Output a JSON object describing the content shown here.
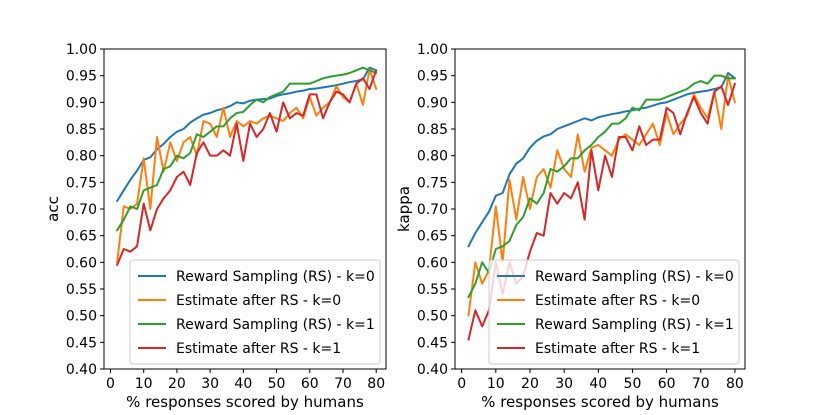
{
  "chart_data": [
    {
      "type": "line",
      "title": "",
      "xlabel": "% responses scored by humans",
      "ylabel": "acc",
      "xlim": [
        -1.95,
        82.95
      ],
      "ylim": [
        0.4,
        1.0
      ],
      "xticks": [
        "0",
        "10",
        "20",
        "30",
        "40",
        "50",
        "60",
        "70",
        "80"
      ],
      "xtick_values": [
        0,
        10,
        20,
        30,
        40,
        50,
        60,
        70,
        80
      ],
      "yticks": [
        "0.40",
        "0.45",
        "0.50",
        "0.55",
        "0.60",
        "0.65",
        "0.70",
        "0.75",
        "0.80",
        "0.85",
        "0.90",
        "0.95",
        "1.00"
      ],
      "ytick_values": [
        0.4,
        0.45,
        0.5,
        0.55,
        0.6,
        0.65,
        0.7,
        0.75,
        0.8,
        0.85,
        0.9,
        0.95,
        1.0
      ],
      "legend_position": "lower-right",
      "x": [
        2,
        4,
        6,
        8,
        10,
        12,
        14,
        16,
        18,
        20,
        22,
        24,
        26,
        28,
        30,
        32,
        34,
        36,
        38,
        40,
        42,
        44,
        46,
        48,
        50,
        52,
        54,
        56,
        58,
        60,
        62,
        64,
        66,
        68,
        70,
        72,
        74,
        76,
        78,
        80
      ],
      "series": [
        {
          "name": "Reward Sampling (RS) - k=0",
          "color": "#1f77b4",
          "values": [
            0.715,
            0.735,
            0.755,
            0.772,
            0.792,
            0.797,
            0.812,
            0.822,
            0.835,
            0.845,
            0.85,
            0.862,
            0.87,
            0.877,
            0.88,
            0.885,
            0.888,
            0.893,
            0.9,
            0.898,
            0.903,
            0.905,
            0.906,
            0.907,
            0.912,
            0.915,
            0.917,
            0.92,
            0.922,
            0.925,
            0.926,
            0.928,
            0.93,
            0.932,
            0.935,
            0.938,
            0.94,
            0.943,
            0.965,
            0.96
          ]
        },
        {
          "name": "Estimate after RS - k=0",
          "color": "#ff7f0e",
          "values": [
            0.6,
            0.705,
            0.7,
            0.71,
            0.795,
            0.7,
            0.835,
            0.77,
            0.825,
            0.79,
            0.825,
            0.835,
            0.8,
            0.865,
            0.86,
            0.835,
            0.89,
            0.835,
            0.865,
            0.855,
            0.865,
            0.86,
            0.87,
            0.875,
            0.87,
            0.865,
            0.88,
            0.89,
            0.87,
            0.91,
            0.875,
            0.89,
            0.9,
            0.93,
            0.91,
            0.9,
            0.935,
            0.895,
            0.962,
            0.925
          ]
        },
        {
          "name": "Reward Sampling (RS) - k=1",
          "color": "#2ca02c",
          "values": [
            0.66,
            0.68,
            0.705,
            0.7,
            0.735,
            0.74,
            0.745,
            0.775,
            0.78,
            0.8,
            0.795,
            0.805,
            0.84,
            0.835,
            0.845,
            0.855,
            0.855,
            0.87,
            0.88,
            0.882,
            0.895,
            0.905,
            0.9,
            0.91,
            0.915,
            0.92,
            0.935,
            0.935,
            0.935,
            0.935,
            0.94,
            0.945,
            0.948,
            0.95,
            0.952,
            0.955,
            0.96,
            0.965,
            0.96,
            0.955
          ]
        },
        {
          "name": "Estimate after RS - k=1",
          "color": "#d62728",
          "values": [
            0.595,
            0.625,
            0.62,
            0.63,
            0.71,
            0.66,
            0.7,
            0.72,
            0.735,
            0.76,
            0.77,
            0.745,
            0.805,
            0.825,
            0.8,
            0.8,
            0.81,
            0.8,
            0.86,
            0.79,
            0.86,
            0.835,
            0.85,
            0.88,
            0.845,
            0.9,
            0.87,
            0.88,
            0.875,
            0.915,
            0.915,
            0.87,
            0.9,
            0.92,
            0.915,
            0.9,
            0.935,
            0.945,
            0.925,
            0.96
          ]
        }
      ]
    },
    {
      "type": "line",
      "title": "",
      "xlabel": "% responses scored by humans",
      "ylabel": "kappa",
      "xlim": [
        -1.95,
        82.95
      ],
      "ylim": [
        0.4,
        1.0
      ],
      "xticks": [
        "0",
        "10",
        "20",
        "30",
        "40",
        "50",
        "60",
        "70",
        "80"
      ],
      "xtick_values": [
        0,
        10,
        20,
        30,
        40,
        50,
        60,
        70,
        80
      ],
      "yticks": [
        "0.40",
        "0.45",
        "0.50",
        "0.55",
        "0.60",
        "0.65",
        "0.70",
        "0.75",
        "0.80",
        "0.85",
        "0.90",
        "0.95",
        "1.00"
      ],
      "ytick_values": [
        0.4,
        0.45,
        0.5,
        0.55,
        0.6,
        0.65,
        0.7,
        0.75,
        0.8,
        0.85,
        0.9,
        0.95,
        1.0
      ],
      "legend_position": "lower-right",
      "x": [
        2,
        4,
        6,
        8,
        10,
        12,
        14,
        16,
        18,
        20,
        22,
        24,
        26,
        28,
        30,
        32,
        34,
        36,
        38,
        40,
        42,
        44,
        46,
        48,
        50,
        52,
        54,
        56,
        58,
        60,
        62,
        64,
        66,
        68,
        70,
        72,
        74,
        76,
        78,
        80
      ],
      "series": [
        {
          "name": "Reward Sampling (RS) - k=0",
          "color": "#1f77b4",
          "values": [
            0.63,
            0.655,
            0.675,
            0.695,
            0.725,
            0.73,
            0.765,
            0.785,
            0.795,
            0.815,
            0.828,
            0.836,
            0.84,
            0.85,
            0.855,
            0.86,
            0.865,
            0.87,
            0.866,
            0.872,
            0.875,
            0.878,
            0.88,
            0.883,
            0.885,
            0.888,
            0.89,
            0.894,
            0.898,
            0.9,
            0.905,
            0.91,
            0.915,
            0.918,
            0.92,
            0.922,
            0.925,
            0.928,
            0.955,
            0.945
          ]
        },
        {
          "name": "Estimate after RS - k=0",
          "color": "#ff7f0e",
          "values": [
            0.5,
            0.6,
            0.56,
            0.585,
            0.705,
            0.6,
            0.755,
            0.68,
            0.76,
            0.7,
            0.76,
            0.775,
            0.74,
            0.81,
            0.775,
            0.76,
            0.84,
            0.77,
            0.815,
            0.82,
            0.81,
            0.8,
            0.83,
            0.84,
            0.83,
            0.82,
            0.84,
            0.86,
            0.82,
            0.88,
            0.84,
            0.86,
            0.875,
            0.915,
            0.89,
            0.87,
            0.92,
            0.85,
            0.95,
            0.9
          ]
        },
        {
          "name": "Reward Sampling (RS) - k=1",
          "color": "#2ca02c",
          "values": [
            0.535,
            0.56,
            0.6,
            0.58,
            0.625,
            0.63,
            0.64,
            0.67,
            0.685,
            0.72,
            0.71,
            0.73,
            0.775,
            0.77,
            0.78,
            0.795,
            0.795,
            0.81,
            0.82,
            0.835,
            0.845,
            0.86,
            0.86,
            0.87,
            0.89,
            0.885,
            0.905,
            0.905,
            0.905,
            0.91,
            0.915,
            0.92,
            0.925,
            0.935,
            0.94,
            0.935,
            0.95,
            0.95,
            0.945,
            0.945
          ]
        },
        {
          "name": "Estimate after RS - k=1",
          "color": "#d62728",
          "values": [
            0.455,
            0.51,
            0.48,
            0.51,
            0.6,
            0.54,
            0.6,
            0.56,
            0.575,
            0.62,
            0.655,
            0.65,
            0.73,
            0.71,
            0.73,
            0.72,
            0.75,
            0.68,
            0.81,
            0.735,
            0.8,
            0.76,
            0.835,
            0.835,
            0.81,
            0.855,
            0.82,
            0.83,
            0.83,
            0.89,
            0.88,
            0.84,
            0.88,
            0.91,
            0.88,
            0.86,
            0.92,
            0.93,
            0.895,
            0.935
          ]
        }
      ]
    }
  ]
}
